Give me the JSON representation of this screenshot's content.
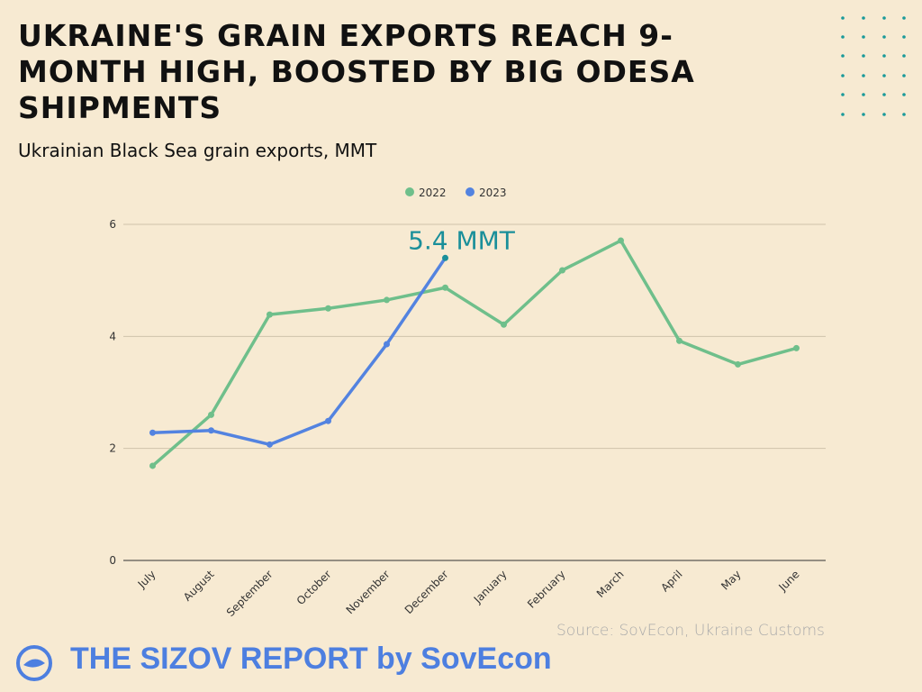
{
  "chart_data": {
    "type": "line",
    "title": "UKRAINE'S GRAIN EXPORTS REACH 9-MONTH HIGH, BOOSTED BY BIG ODESA SHIPMENTS",
    "subtitle": "Ukrainian Black Sea grain exports, MMT",
    "source": "Source: SovEcon, Ukraine Customs",
    "footer": "THE SIZOV REPORT by SovEcon",
    "categories": [
      "July",
      "August",
      "September",
      "October",
      "November",
      "December",
      "January",
      "February",
      "March",
      "April",
      "May",
      "June"
    ],
    "series": [
      {
        "name": "2022",
        "color": "#6fbf8b",
        "values": [
          1.69,
          2.6,
          4.39,
          4.5,
          4.65,
          4.87,
          4.21,
          5.18,
          5.71,
          3.92,
          3.5,
          3.79
        ]
      },
      {
        "name": "2023",
        "color": "#5383e0",
        "values": [
          2.28,
          2.32,
          2.07,
          2.49,
          3.86,
          5.4,
          null,
          null,
          null,
          null,
          null,
          null
        ],
        "value_labels": [
          null,
          null,
          null,
          null,
          null,
          "5.4 MMT",
          null,
          null,
          null,
          null,
          null,
          null
        ]
      }
    ],
    "ylim": [
      0,
      6
    ],
    "yticks": [
      0,
      2,
      4,
      6
    ],
    "grid": true,
    "legend": "top"
  }
}
